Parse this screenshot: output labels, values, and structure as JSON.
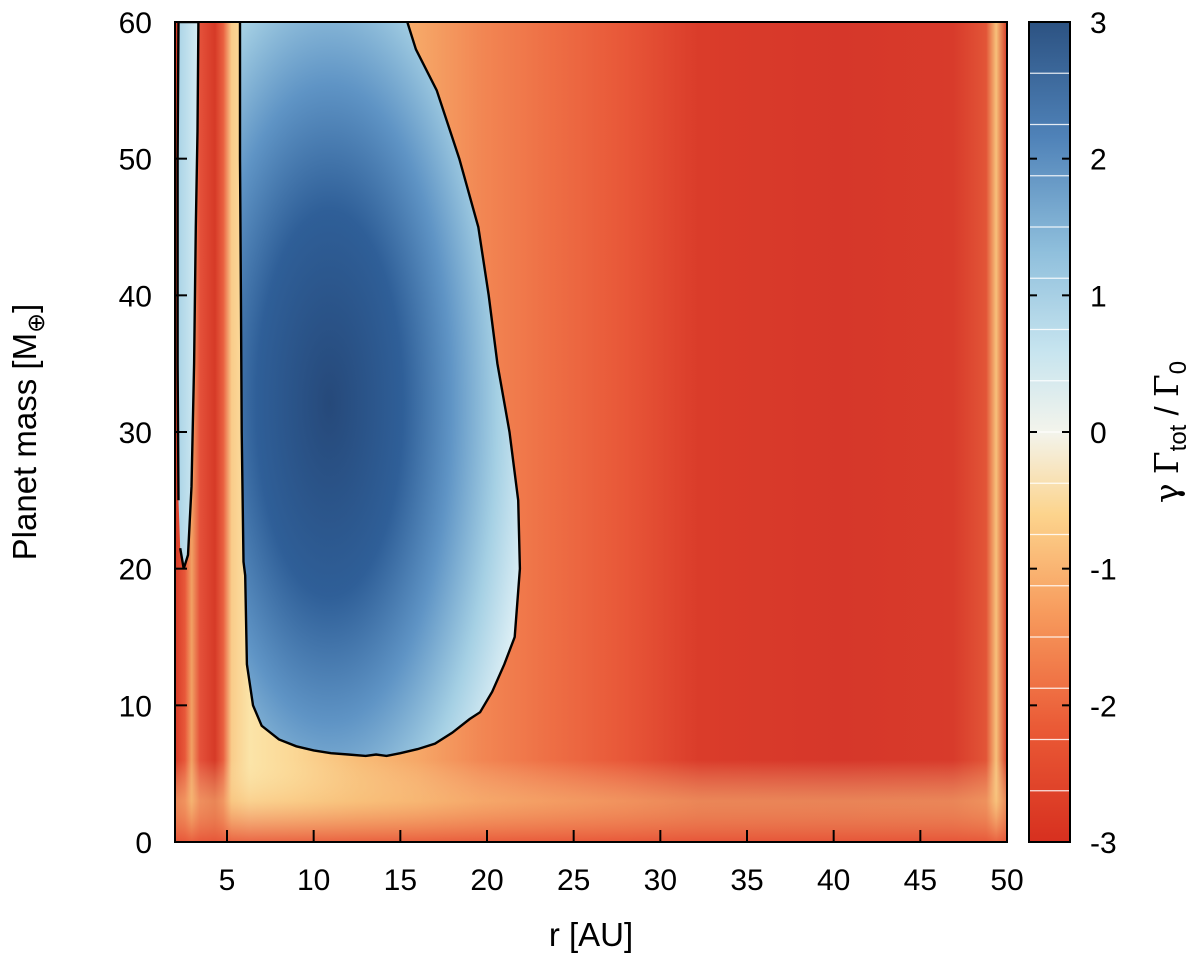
{
  "chart_data": {
    "type": "heatmap",
    "xlabel": "r [AU]",
    "ylabel_main": "Planet mass [M",
    "ylabel_sub": "⊕",
    "ylabel_close": "]",
    "colorbar_label": {
      "gamma": "γ",
      "gamma_space": " ",
      "Gamma": "Γ",
      "tot": "tot",
      "slash": " / ",
      "zero": "0"
    },
    "x_range": [
      2,
      50
    ],
    "y_range": [
      0,
      60
    ],
    "x_ticks": [
      5,
      10,
      15,
      20,
      25,
      30,
      35,
      40,
      45,
      50
    ],
    "x_tick_labels": [
      "5",
      "10",
      "15",
      "20",
      "25",
      "30",
      "35",
      "40",
      "45",
      "50"
    ],
    "y_ticks": [
      0,
      10,
      20,
      30,
      40,
      50,
      60
    ],
    "y_tick_labels": [
      "0",
      "10",
      "20",
      "30",
      "40",
      "50",
      "60"
    ],
    "colorbar_range": [
      -3,
      3
    ],
    "colorbar_ticks": [
      -3,
      -2,
      -1,
      0,
      1,
      2,
      3
    ],
    "colorbar_tick_labels": [
      "-3",
      "-2",
      "-1",
      "0",
      "1",
      "2",
      "3"
    ],
    "colormap": [
      "#d7301f",
      "#f46d43",
      "#fdae61",
      "#fee090",
      "#e0f3f8",
      "#abd9e9",
      "#74add1",
      "#4575b4",
      "#2c5282"
    ],
    "regions": [
      {
        "name": "inner positive-torque zone",
        "contour": [
          [
            2.3,
            21.5
          ],
          [
            2.5,
            20
          ],
          [
            2.75,
            21
          ],
          [
            2.95,
            26
          ],
          [
            3.1,
            35
          ],
          [
            3.2,
            45
          ],
          [
            3.3,
            52
          ],
          [
            3.35,
            60
          ],
          [
            2.2,
            60
          ],
          [
            2.15,
            50
          ],
          [
            2.15,
            35
          ],
          [
            2.2,
            25
          ]
        ]
      },
      {
        "name": "main positive-torque zone",
        "contour": [
          [
            5.75,
            60
          ],
          [
            5.75,
            50
          ],
          [
            5.8,
            40
          ],
          [
            5.85,
            30
          ],
          [
            5.95,
            20.5
          ],
          [
            6.05,
            19.5
          ],
          [
            6.15,
            13
          ],
          [
            6.5,
            10
          ],
          [
            7,
            8.5
          ],
          [
            8,
            7.5
          ],
          [
            9,
            7
          ],
          [
            10,
            6.7
          ],
          [
            11,
            6.5
          ],
          [
            12,
            6.4
          ],
          [
            13,
            6.3
          ],
          [
            13.6,
            6.4
          ],
          [
            14.2,
            6.3
          ],
          [
            15,
            6.5
          ],
          [
            16,
            6.8
          ],
          [
            17,
            7.2
          ],
          [
            18,
            8.0
          ],
          [
            19,
            9.0
          ],
          [
            19.6,
            9.5
          ],
          [
            20.3,
            11
          ],
          [
            21,
            13
          ],
          [
            21.6,
            15
          ],
          [
            21.9,
            20
          ],
          [
            21.8,
            25
          ],
          [
            21.3,
            30
          ],
          [
            20.6,
            35
          ],
          [
            20.1,
            40
          ],
          [
            19.5,
            45
          ],
          [
            18.4,
            50
          ],
          [
            17.1,
            55
          ],
          [
            15.9,
            58
          ],
          [
            15.4,
            60
          ]
        ]
      }
    ]
  }
}
